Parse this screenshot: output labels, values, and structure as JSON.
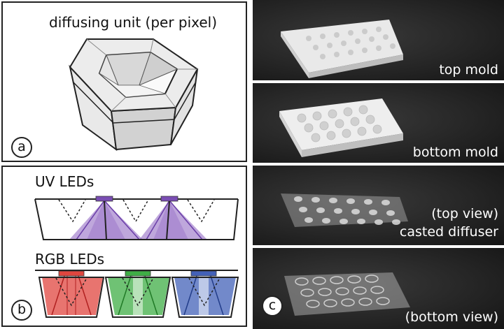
{
  "panel_a": {
    "title": "diffusing unit (per pixel)",
    "label": "a"
  },
  "panel_b": {
    "uv_title": "UV LEDs",
    "rgb_title": "RGB LEDs",
    "label": "b",
    "colors": {
      "uv": "#8a5ec0",
      "red": "#e0463f",
      "green": "#3fae45",
      "blue": "#4361b8"
    }
  },
  "panel_c": {
    "label": "c",
    "photos": [
      {
        "caption": "top mold"
      },
      {
        "caption": "bottom mold"
      },
      {
        "caption_line1": "(top view)",
        "caption_line2": "casted diffuser"
      },
      {
        "caption": "(bottom view)"
      }
    ]
  }
}
